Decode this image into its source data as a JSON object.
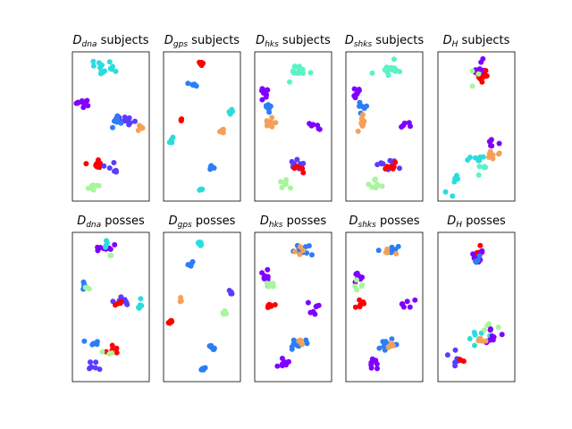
{
  "figure": {
    "palette": {
      "violet": "#7f00ff",
      "blue": "#2c7ef7",
      "cyan": "#2adddd",
      "aquamarine": "#5af3c4",
      "green": "#a8f59c",
      "orange": "#f5a05a",
      "red": "#ff0000",
      "indigo": "#5a3cff"
    }
  },
  "chart_data": [
    {
      "type": "scatter",
      "title": {
        "main": "D",
        "sub": "dna",
        "rest": " subjects"
      },
      "xlim": [
        0,
        1
      ],
      "ylim": [
        0,
        1
      ],
      "xticks": [],
      "yticks": [],
      "clusters": [
        {
          "color": "cyan",
          "cx": 0.4,
          "cy": 0.92,
          "sx": 0.1,
          "sy": 0.03,
          "n": 14
        },
        {
          "color": "violet",
          "cx": 0.12,
          "cy": 0.66,
          "sx": 0.05,
          "sy": 0.02,
          "n": 9
        },
        {
          "color": "indigo",
          "cx": 0.68,
          "cy": 0.55,
          "sx": 0.08,
          "sy": 0.015,
          "n": 12
        },
        {
          "color": "blue",
          "cx": 0.55,
          "cy": 0.53,
          "sx": 0.05,
          "sy": 0.02,
          "n": 6
        },
        {
          "color": "orange",
          "cx": 0.93,
          "cy": 0.5,
          "sx": 0.02,
          "sy": 0.02,
          "n": 6
        },
        {
          "color": "red",
          "cx": 0.28,
          "cy": 0.24,
          "sx": 0.07,
          "sy": 0.02,
          "n": 10
        },
        {
          "color": "indigo",
          "cx": 0.5,
          "cy": 0.2,
          "sx": 0.07,
          "sy": 0.02,
          "n": 6
        },
        {
          "color": "green",
          "cx": 0.25,
          "cy": 0.08,
          "sx": 0.05,
          "sy": 0.02,
          "n": 8
        }
      ]
    },
    {
      "type": "scatter",
      "title": {
        "main": "D",
        "sub": "gps",
        "rest": " subjects"
      },
      "xlim": [
        0,
        1
      ],
      "ylim": [
        0,
        1
      ],
      "xticks": [],
      "yticks": [],
      "clusters": [
        {
          "color": "red",
          "cx": 0.48,
          "cy": 0.94,
          "sx": 0.02,
          "sy": 0.01,
          "n": 8
        },
        {
          "color": "blue",
          "cx": 0.35,
          "cy": 0.8,
          "sx": 0.03,
          "sy": 0.01,
          "n": 6
        },
        {
          "color": "cyan",
          "cx": 0.92,
          "cy": 0.6,
          "sx": 0.02,
          "sy": 0.015,
          "n": 6
        },
        {
          "color": "red",
          "cx": 0.2,
          "cy": 0.55,
          "sx": 0.01,
          "sy": 0.01,
          "n": 4
        },
        {
          "color": "orange",
          "cx": 0.8,
          "cy": 0.46,
          "sx": 0.02,
          "sy": 0.01,
          "n": 6
        },
        {
          "color": "cyan",
          "cx": 0.05,
          "cy": 0.4,
          "sx": 0.02,
          "sy": 0.01,
          "n": 6
        },
        {
          "color": "blue",
          "cx": 0.64,
          "cy": 0.21,
          "sx": 0.02,
          "sy": 0.01,
          "n": 6
        },
        {
          "color": "cyan",
          "cx": 0.5,
          "cy": 0.06,
          "sx": 0.02,
          "sy": 0.01,
          "n": 6
        }
      ]
    },
    {
      "type": "scatter",
      "title": {
        "main": "D",
        "sub": "hks",
        "rest": " subjects"
      },
      "xlim": [
        0,
        1
      ],
      "ylim": [
        0,
        1
      ],
      "xticks": [],
      "yticks": [],
      "clusters": [
        {
          "color": "aquamarine",
          "cx": 0.6,
          "cy": 0.9,
          "sx": 0.1,
          "sy": 0.025,
          "n": 14
        },
        {
          "color": "violet",
          "cx": 0.1,
          "cy": 0.73,
          "sx": 0.04,
          "sy": 0.03,
          "n": 8
        },
        {
          "color": "blue",
          "cx": 0.18,
          "cy": 0.64,
          "sx": 0.05,
          "sy": 0.02,
          "n": 6
        },
        {
          "color": "orange",
          "cx": 0.16,
          "cy": 0.53,
          "sx": 0.04,
          "sy": 0.03,
          "n": 10
        },
        {
          "color": "violet",
          "cx": 0.82,
          "cy": 0.51,
          "sx": 0.05,
          "sy": 0.02,
          "n": 6
        },
        {
          "color": "indigo",
          "cx": 0.55,
          "cy": 0.23,
          "sx": 0.08,
          "sy": 0.02,
          "n": 10
        },
        {
          "color": "red",
          "cx": 0.58,
          "cy": 0.21,
          "sx": 0.04,
          "sy": 0.02,
          "n": 6
        },
        {
          "color": "green",
          "cx": 0.38,
          "cy": 0.09,
          "sx": 0.05,
          "sy": 0.02,
          "n": 8
        }
      ]
    },
    {
      "type": "scatter",
      "title": {
        "main": "D",
        "sub": "shks",
        "rest": " subjects"
      },
      "xlim": [
        0,
        1
      ],
      "ylim": [
        0,
        1
      ],
      "xticks": [],
      "yticks": [],
      "clusters": [
        {
          "color": "aquamarine",
          "cx": 0.6,
          "cy": 0.9,
          "sx": 0.1,
          "sy": 0.025,
          "n": 14
        },
        {
          "color": "violet",
          "cx": 0.1,
          "cy": 0.73,
          "sx": 0.04,
          "sy": 0.03,
          "n": 8
        },
        {
          "color": "blue",
          "cx": 0.18,
          "cy": 0.64,
          "sx": 0.05,
          "sy": 0.02,
          "n": 6
        },
        {
          "color": "orange",
          "cx": 0.16,
          "cy": 0.53,
          "sx": 0.04,
          "sy": 0.03,
          "n": 10
        },
        {
          "color": "violet",
          "cx": 0.82,
          "cy": 0.51,
          "sx": 0.05,
          "sy": 0.02,
          "n": 6
        },
        {
          "color": "indigo",
          "cx": 0.55,
          "cy": 0.23,
          "sx": 0.08,
          "sy": 0.02,
          "n": 10
        },
        {
          "color": "red",
          "cx": 0.58,
          "cy": 0.21,
          "sx": 0.04,
          "sy": 0.02,
          "n": 6
        },
        {
          "color": "green",
          "cx": 0.38,
          "cy": 0.09,
          "sx": 0.05,
          "sy": 0.02,
          "n": 8
        }
      ]
    },
    {
      "type": "scatter",
      "title": {
        "main": "D",
        "sub": "H",
        "rest": " subjects"
      },
      "xlim": [
        0,
        1
      ],
      "ylim": [
        0,
        1
      ],
      "xticks": [],
      "yticks": [],
      "clusters": [
        {
          "color": "violet",
          "cx": 0.55,
          "cy": 0.9,
          "sx": 0.05,
          "sy": 0.03,
          "n": 10
        },
        {
          "color": "red",
          "cx": 0.55,
          "cy": 0.85,
          "sx": 0.04,
          "sy": 0.02,
          "n": 10
        },
        {
          "color": "green",
          "cx": 0.42,
          "cy": 0.85,
          "sx": 0.04,
          "sy": 0.03,
          "n": 3
        },
        {
          "color": "cyan",
          "cx": 0.55,
          "cy": 0.26,
          "sx": 0.08,
          "sy": 0.02,
          "n": 8
        },
        {
          "color": "orange",
          "cx": 0.75,
          "cy": 0.3,
          "sx": 0.07,
          "sy": 0.03,
          "n": 8
        },
        {
          "color": "violet",
          "cx": 0.72,
          "cy": 0.38,
          "sx": 0.06,
          "sy": 0.02,
          "n": 6
        },
        {
          "color": "aquamarine",
          "cx": 0.6,
          "cy": 0.22,
          "sx": 0.08,
          "sy": 0.03,
          "n": 6
        },
        {
          "color": "cyan",
          "cx": 0.15,
          "cy": 0.1,
          "sx": 0.08,
          "sy": 0.04,
          "n": 6
        }
      ]
    },
    {
      "type": "scatter",
      "title": {
        "main": "D",
        "sub": "dna",
        "rest": " posses"
      },
      "xlim": [
        0,
        1
      ],
      "ylim": [
        0,
        1
      ],
      "xticks": [],
      "yticks": [],
      "clusters": [
        {
          "color": "violet",
          "cx": 0.38,
          "cy": 0.92,
          "sx": 0.08,
          "sy": 0.02,
          "n": 8
        },
        {
          "color": "cyan",
          "cx": 0.42,
          "cy": 0.93,
          "sx": 0.05,
          "sy": 0.02,
          "n": 4
        },
        {
          "color": "green",
          "cx": 0.5,
          "cy": 0.85,
          "sx": 0.02,
          "sy": 0.015,
          "n": 2
        },
        {
          "color": "blue",
          "cx": 0.12,
          "cy": 0.66,
          "sx": 0.04,
          "sy": 0.02,
          "n": 6
        },
        {
          "color": "green",
          "cx": 0.18,
          "cy": 0.65,
          "sx": 0.03,
          "sy": 0.015,
          "n": 3
        },
        {
          "color": "indigo",
          "cx": 0.68,
          "cy": 0.55,
          "sx": 0.08,
          "sy": 0.015,
          "n": 10
        },
        {
          "color": "red",
          "cx": 0.6,
          "cy": 0.52,
          "sx": 0.04,
          "sy": 0.02,
          "n": 4
        },
        {
          "color": "cyan",
          "cx": 0.92,
          "cy": 0.5,
          "sx": 0.03,
          "sy": 0.02,
          "n": 6
        },
        {
          "color": "blue",
          "cx": 0.28,
          "cy": 0.25,
          "sx": 0.07,
          "sy": 0.02,
          "n": 6
        },
        {
          "color": "red",
          "cx": 0.5,
          "cy": 0.2,
          "sx": 0.06,
          "sy": 0.02,
          "n": 5
        },
        {
          "color": "green",
          "cx": 0.45,
          "cy": 0.18,
          "sx": 0.05,
          "sy": 0.01,
          "n": 3
        },
        {
          "color": "indigo",
          "cx": 0.27,
          "cy": 0.1,
          "sx": 0.05,
          "sy": 0.02,
          "n": 7
        }
      ]
    },
    {
      "type": "scatter",
      "title": {
        "main": "D",
        "sub": "gps",
        "rest": " posses"
      },
      "xlim": [
        0,
        1
      ],
      "ylim": [
        0,
        1
      ],
      "xticks": [],
      "yticks": [],
      "clusters": [
        {
          "color": "cyan",
          "cx": 0.48,
          "cy": 0.94,
          "sx": 0.02,
          "sy": 0.01,
          "n": 8
        },
        {
          "color": "blue",
          "cx": 0.35,
          "cy": 0.8,
          "sx": 0.02,
          "sy": 0.01,
          "n": 6
        },
        {
          "color": "indigo",
          "cx": 0.92,
          "cy": 0.6,
          "sx": 0.02,
          "sy": 0.015,
          "n": 6
        },
        {
          "color": "orange",
          "cx": 0.2,
          "cy": 0.55,
          "sx": 0.01,
          "sy": 0.01,
          "n": 3
        },
        {
          "color": "green",
          "cx": 0.8,
          "cy": 0.46,
          "sx": 0.02,
          "sy": 0.01,
          "n": 6
        },
        {
          "color": "red",
          "cx": 0.05,
          "cy": 0.4,
          "sx": 0.02,
          "sy": 0.01,
          "n": 6
        },
        {
          "color": "blue",
          "cx": 0.64,
          "cy": 0.21,
          "sx": 0.02,
          "sy": 0.01,
          "n": 6
        },
        {
          "color": "blue",
          "cx": 0.5,
          "cy": 0.06,
          "sx": 0.02,
          "sy": 0.01,
          "n": 6
        }
      ]
    },
    {
      "type": "scatter",
      "title": {
        "main": "D",
        "sub": "hks",
        "rest": " posses"
      },
      "xlim": [
        0,
        1
      ],
      "ylim": [
        0,
        1
      ],
      "xticks": [],
      "yticks": [],
      "clusters": [
        {
          "color": "blue",
          "cx": 0.62,
          "cy": 0.9,
          "sx": 0.08,
          "sy": 0.02,
          "n": 10
        },
        {
          "color": "orange",
          "cx": 0.58,
          "cy": 0.88,
          "sx": 0.05,
          "sy": 0.02,
          "n": 4
        },
        {
          "color": "violet",
          "cx": 0.1,
          "cy": 0.72,
          "sx": 0.04,
          "sy": 0.03,
          "n": 8
        },
        {
          "color": "green",
          "cx": 0.15,
          "cy": 0.65,
          "sx": 0.04,
          "sy": 0.02,
          "n": 5
        },
        {
          "color": "red",
          "cx": 0.16,
          "cy": 0.52,
          "sx": 0.04,
          "sy": 0.02,
          "n": 6
        },
        {
          "color": "violet",
          "cx": 0.82,
          "cy": 0.5,
          "sx": 0.05,
          "sy": 0.02,
          "n": 7
        },
        {
          "color": "blue",
          "cx": 0.55,
          "cy": 0.23,
          "sx": 0.08,
          "sy": 0.02,
          "n": 10
        },
        {
          "color": "orange",
          "cx": 0.62,
          "cy": 0.24,
          "sx": 0.04,
          "sy": 0.02,
          "n": 4
        },
        {
          "color": "violet",
          "cx": 0.36,
          "cy": 0.1,
          "sx": 0.05,
          "sy": 0.02,
          "n": 8
        }
      ]
    },
    {
      "type": "scatter",
      "title": {
        "main": "D",
        "sub": "shks",
        "rest": " posses"
      },
      "xlim": [
        0,
        1
      ],
      "ylim": [
        0,
        1
      ],
      "xticks": [],
      "yticks": [],
      "clusters": [
        {
          "color": "blue",
          "cx": 0.62,
          "cy": 0.9,
          "sx": 0.08,
          "sy": 0.02,
          "n": 10
        },
        {
          "color": "orange",
          "cx": 0.58,
          "cy": 0.88,
          "sx": 0.05,
          "sy": 0.02,
          "n": 4
        },
        {
          "color": "violet",
          "cx": 0.1,
          "cy": 0.72,
          "sx": 0.04,
          "sy": 0.03,
          "n": 8
        },
        {
          "color": "green",
          "cx": 0.15,
          "cy": 0.65,
          "sx": 0.04,
          "sy": 0.02,
          "n": 5
        },
        {
          "color": "red",
          "cx": 0.16,
          "cy": 0.52,
          "sx": 0.04,
          "sy": 0.02,
          "n": 6
        },
        {
          "color": "violet",
          "cx": 0.82,
          "cy": 0.5,
          "sx": 0.05,
          "sy": 0.02,
          "n": 7
        },
        {
          "color": "blue",
          "cx": 0.55,
          "cy": 0.23,
          "sx": 0.08,
          "sy": 0.02,
          "n": 10
        },
        {
          "color": "orange",
          "cx": 0.62,
          "cy": 0.24,
          "sx": 0.04,
          "sy": 0.02,
          "n": 4
        },
        {
          "color": "violet",
          "cx": 0.36,
          "cy": 0.1,
          "sx": 0.05,
          "sy": 0.02,
          "n": 8
        }
      ]
    },
    {
      "type": "scatter",
      "title": {
        "main": "D",
        "sub": "H",
        "rest": " posses"
      },
      "xlim": [
        0,
        1
      ],
      "ylim": [
        0,
        1
      ],
      "xticks": [],
      "yticks": [],
      "clusters": [
        {
          "color": "red",
          "cx": 0.55,
          "cy": 0.9,
          "sx": 0.04,
          "sy": 0.02,
          "n": 6
        },
        {
          "color": "violet",
          "cx": 0.55,
          "cy": 0.85,
          "sx": 0.06,
          "sy": 0.03,
          "n": 8
        },
        {
          "color": "blue",
          "cx": 0.5,
          "cy": 0.84,
          "sx": 0.04,
          "sy": 0.02,
          "n": 4
        },
        {
          "color": "cyan",
          "cx": 0.6,
          "cy": 0.3,
          "sx": 0.08,
          "sy": 0.03,
          "n": 8
        },
        {
          "color": "green",
          "cx": 0.68,
          "cy": 0.35,
          "sx": 0.06,
          "sy": 0.02,
          "n": 6
        },
        {
          "color": "violet",
          "cx": 0.75,
          "cy": 0.28,
          "sx": 0.07,
          "sy": 0.03,
          "n": 8
        },
        {
          "color": "orange",
          "cx": 0.6,
          "cy": 0.25,
          "sx": 0.05,
          "sy": 0.02,
          "n": 4
        },
        {
          "color": "indigo",
          "cx": 0.12,
          "cy": 0.12,
          "sx": 0.08,
          "sy": 0.04,
          "n": 6
        },
        {
          "color": "red",
          "cx": 0.3,
          "cy": 0.12,
          "sx": 0.03,
          "sy": 0.02,
          "n": 3
        }
      ]
    }
  ]
}
